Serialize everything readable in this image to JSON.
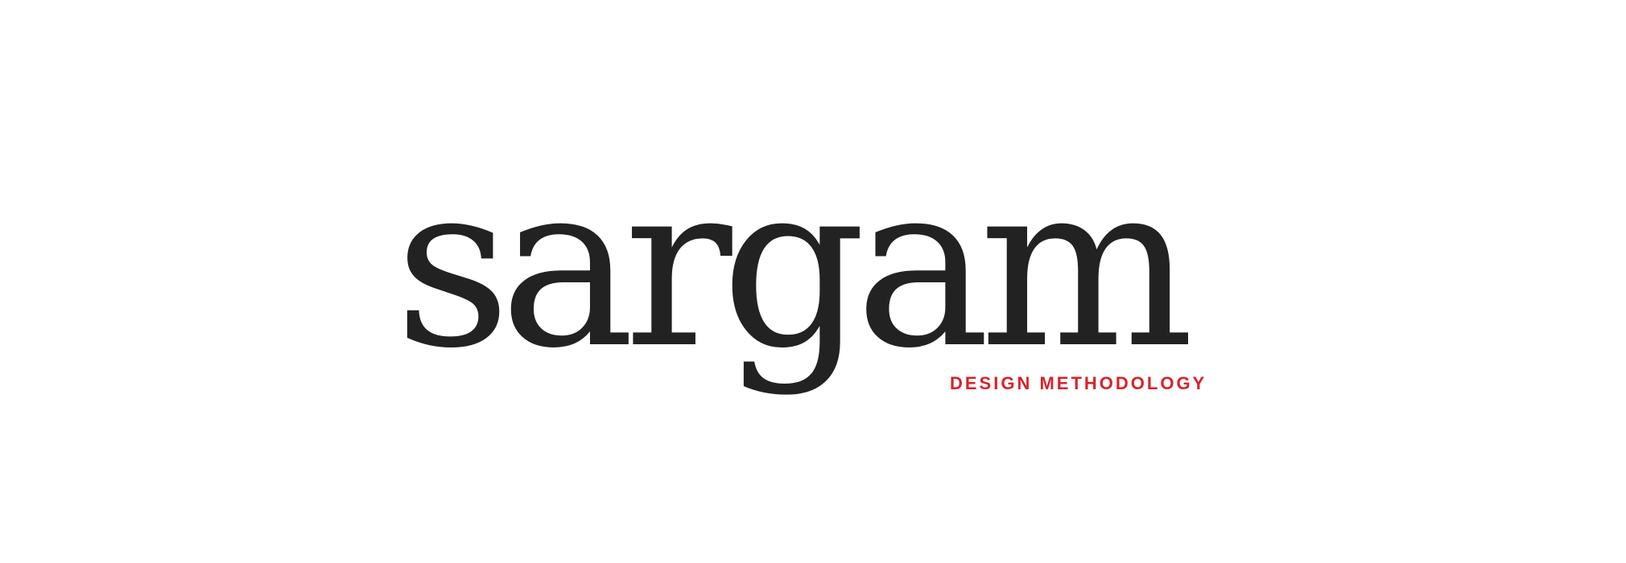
{
  "brand": {
    "wordmark": "sargam",
    "tagline": "DESIGN METHODOLOGY"
  },
  "colors": {
    "background": "#ffffff",
    "wordmark": "#222222",
    "accent": "#d8232a"
  }
}
